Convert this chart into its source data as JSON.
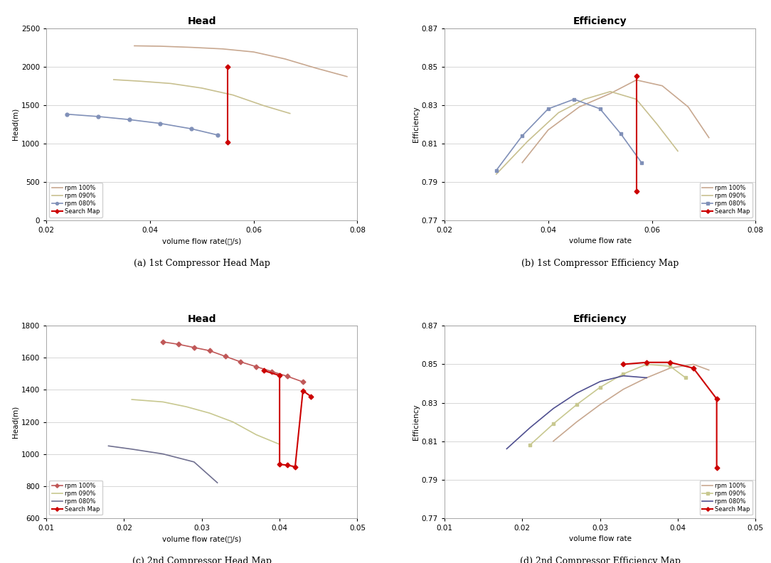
{
  "fig_width": 10.84,
  "fig_height": 7.92,
  "subplots": [
    {
      "key": "a",
      "title": "Head",
      "xlabel": "volume flow rate(㎥/s)",
      "ylabel": "Head(m)",
      "xlim": [
        0.02,
        0.08
      ],
      "ylim": [
        0,
        2500
      ],
      "yticks": [
        0,
        500,
        1000,
        1500,
        2000,
        2500
      ],
      "xtick_vals": [
        0.02,
        0.04,
        0.06,
        0.08
      ],
      "caption": "(a) 1st Compressor Head Map",
      "curves": [
        {
          "x": [
            0.037,
            0.042,
            0.048,
            0.054,
            0.06,
            0.066,
            0.072,
            0.078
          ],
          "y": [
            2270,
            2265,
            2250,
            2230,
            2190,
            2100,
            1980,
            1870
          ],
          "color": "#c8a890",
          "marker": null,
          "lw": 1.2,
          "label": "rpm 100%"
        },
        {
          "x": [
            0.033,
            0.038,
            0.044,
            0.05,
            0.056,
            0.062,
            0.067
          ],
          "y": [
            1830,
            1810,
            1780,
            1720,
            1630,
            1490,
            1390
          ],
          "color": "#c8c090",
          "marker": null,
          "lw": 1.2,
          "label": "rpm 090%"
        },
        {
          "x": [
            0.024,
            0.03,
            0.036,
            0.042,
            0.048,
            0.053
          ],
          "y": [
            1380,
            1350,
            1310,
            1260,
            1190,
            1110
          ],
          "color": "#8090b8",
          "marker": "o",
          "lw": 1.2,
          "label": "rpm 080%"
        },
        {
          "x": [
            0.055,
            0.055
          ],
          "y": [
            2000,
            1020
          ],
          "color": "#cc0000",
          "marker": "D",
          "lw": 1.5,
          "label": "Search Map"
        }
      ]
    },
    {
      "key": "b",
      "title": "Efficiency",
      "xlabel": "volume flow rate",
      "ylabel": "Efficiency",
      "xlim": [
        0.02,
        0.08
      ],
      "ylim": [
        0.77,
        0.87
      ],
      "yticks": [
        0.77,
        0.79,
        0.81,
        0.83,
        0.85,
        0.87
      ],
      "xtick_vals": [
        0.02,
        0.04,
        0.06,
        0.08
      ],
      "caption": "(b) 1st Compressor Efficiency Map",
      "curves": [
        {
          "x": [
            0.035,
            0.04,
            0.046,
            0.052,
            0.057,
            0.062,
            0.067,
            0.071
          ],
          "y": [
            0.8,
            0.817,
            0.829,
            0.836,
            0.843,
            0.84,
            0.829,
            0.813
          ],
          "color": "#c8a890",
          "marker": null,
          "lw": 1.2,
          "label": "rpm 100%"
        },
        {
          "x": [
            0.03,
            0.036,
            0.042,
            0.047,
            0.052,
            0.057,
            0.061,
            0.065
          ],
          "y": [
            0.794,
            0.811,
            0.826,
            0.833,
            0.837,
            0.833,
            0.82,
            0.806
          ],
          "color": "#c8c090",
          "marker": null,
          "lw": 1.2,
          "label": "rpm 090%"
        },
        {
          "x": [
            0.03,
            0.035,
            0.04,
            0.045,
            0.05,
            0.054,
            0.058
          ],
          "y": [
            0.796,
            0.814,
            0.828,
            0.833,
            0.828,
            0.815,
            0.8
          ],
          "color": "#8090b8",
          "marker": "s",
          "lw": 1.2,
          "label": "rpm 080%"
        },
        {
          "x": [
            0.057,
            0.057
          ],
          "y": [
            0.845,
            0.785
          ],
          "color": "#cc0000",
          "marker": "D",
          "lw": 1.5,
          "label": "Search Map"
        }
      ]
    },
    {
      "key": "c",
      "title": "Head",
      "xlabel": "volume flow rate(㎥/s)",
      "ylabel": "Head(m)",
      "xlim": [
        0.01,
        0.05
      ],
      "ylim": [
        600,
        1800
      ],
      "yticks": [
        600,
        800,
        1000,
        1200,
        1400,
        1600,
        1800
      ],
      "xtick_vals": [
        0.01,
        0.02,
        0.03,
        0.04,
        0.05
      ],
      "caption": "(c) 2nd Compressor Head Map",
      "curves": [
        {
          "x": [
            0.025,
            0.027,
            0.029,
            0.031,
            0.033,
            0.035,
            0.037,
            0.039,
            0.041,
            0.043
          ],
          "y": [
            1700,
            1685,
            1665,
            1645,
            1610,
            1575,
            1545,
            1515,
            1485,
            1450
          ],
          "color": "#c05858",
          "marker": "D",
          "lw": 1.2,
          "label": "rpm 100%"
        },
        {
          "x": [
            0.021,
            0.025,
            0.028,
            0.031,
            0.034,
            0.037,
            0.04
          ],
          "y": [
            1340,
            1325,
            1295,
            1255,
            1200,
            1120,
            1060
          ],
          "color": "#c8c890",
          "marker": null,
          "lw": 1.2,
          "label": "rpm 090%"
        },
        {
          "x": [
            0.018,
            0.021,
            0.025,
            0.029,
            0.032
          ],
          "y": [
            1050,
            1030,
            1000,
            950,
            820
          ],
          "color": "#707090",
          "marker": null,
          "lw": 1.2,
          "label": "rpm 080%"
        },
        {
          "x": [
            0.038,
            0.04,
            0.04,
            0.041,
            0.042,
            0.043,
            0.044
          ],
          "y": [
            1520,
            1490,
            935,
            930,
            920,
            1395,
            1360
          ],
          "color": "#cc0000",
          "marker": "D",
          "lw": 1.5,
          "label": "Search Map"
        }
      ]
    },
    {
      "key": "d",
      "title": "Efficiency",
      "xlabel": "volume flow rate",
      "ylabel": "Efficiency",
      "xlim": [
        0.01,
        0.05
      ],
      "ylim": [
        0.77,
        0.87
      ],
      "yticks": [
        0.77,
        0.79,
        0.81,
        0.83,
        0.85,
        0.87
      ],
      "xtick_vals": [
        0.01,
        0.02,
        0.03,
        0.04,
        0.05
      ],
      "caption": "(d) 2nd Compressor Efficiency Map",
      "curves": [
        {
          "x": [
            0.024,
            0.027,
            0.03,
            0.033,
            0.036,
            0.039,
            0.042,
            0.044
          ],
          "y": [
            0.81,
            0.82,
            0.829,
            0.837,
            0.843,
            0.848,
            0.85,
            0.847
          ],
          "color": "#c8a890",
          "marker": null,
          "lw": 1.2,
          "label": "rpm 100%"
        },
        {
          "x": [
            0.021,
            0.024,
            0.027,
            0.03,
            0.033,
            0.036,
            0.039,
            0.041
          ],
          "y": [
            0.808,
            0.819,
            0.829,
            0.838,
            0.845,
            0.85,
            0.849,
            0.843
          ],
          "color": "#c8c890",
          "marker": "s",
          "lw": 1.2,
          "label": "rpm 090%"
        },
        {
          "x": [
            0.018,
            0.021,
            0.024,
            0.027,
            0.03,
            0.033,
            0.036
          ],
          "y": [
            0.806,
            0.817,
            0.827,
            0.835,
            0.841,
            0.844,
            0.843
          ],
          "color": "#505090",
          "marker": null,
          "lw": 1.2,
          "label": "rpm 080%"
        },
        {
          "x": [
            0.033,
            0.036,
            0.039,
            0.042,
            0.045,
            0.045
          ],
          "y": [
            0.85,
            0.851,
            0.851,
            0.848,
            0.832,
            0.796
          ],
          "color": "#cc0000",
          "marker": "D",
          "lw": 1.5,
          "label": "Search Map"
        }
      ]
    }
  ]
}
